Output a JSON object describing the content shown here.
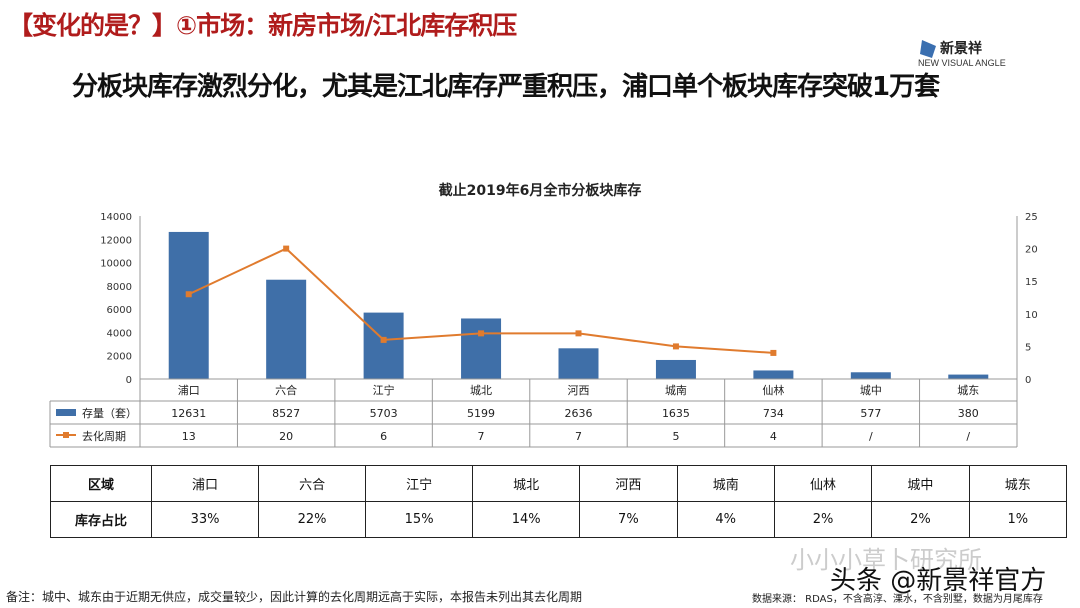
{
  "header": {
    "title": "【变化的是？】①市场：新房市场/江北库存积压",
    "subtitle": "分板块库存激烈分化，尤其是江北库存严重积压，浦口单个板块库存突破1万套",
    "logo_text": "新景祥",
    "logo_sub": "NEW VISUAL ANGLE"
  },
  "chart_data": {
    "type": "bar+line",
    "title": "截止2019年6月全市分板块库存",
    "categories": [
      "浦口",
      "六合",
      "江宁",
      "城北",
      "河西",
      "城南",
      "仙林",
      "城中",
      "城东"
    ],
    "series": [
      {
        "name": "存量（套）",
        "type": "bar",
        "axis": "left",
        "color": "#3f6fa8",
        "values": [
          12631,
          8527,
          5703,
          5199,
          2636,
          1635,
          734,
          577,
          380
        ],
        "labels": [
          "12631",
          "8527",
          "5703",
          "5199",
          "2636",
          "1635",
          "734",
          "577",
          "380"
        ]
      },
      {
        "name": "去化周期",
        "type": "line",
        "axis": "right",
        "color": "#e07b2e",
        "values": [
          13,
          20,
          6,
          7,
          7,
          5,
          4,
          null,
          null
        ],
        "labels": [
          "13",
          "20",
          "6",
          "7",
          "7",
          "5",
          "4",
          "/",
          "/"
        ]
      }
    ],
    "ylim_left": [
      0,
      14000
    ],
    "yticks_left": [
      0,
      2000,
      4000,
      6000,
      8000,
      10000,
      12000,
      14000
    ],
    "ylim_right": [
      0,
      25
    ],
    "yticks_right": [
      0,
      5,
      10,
      15,
      20,
      25
    ],
    "legend": "data-table"
  },
  "share_table": {
    "row_header": "区域",
    "value_header": "库存占比",
    "regions": [
      "浦口",
      "六合",
      "江宁",
      "城北",
      "河西",
      "城南",
      "仙林",
      "城中",
      "城东"
    ],
    "shares": [
      "33%",
      "22%",
      "15%",
      "14%",
      "7%",
      "4%",
      "2%",
      "2%",
      "1%"
    ]
  },
  "footer": {
    "note": "备注：城中、城东由于近期无供应，成交量较少，因此计算的去化周期远高于实际，本报告未列出其去化周期",
    "source": "数据来源：   RDAS，不含高淳、溧水，不含别墅，数据为月尾库存",
    "watermark1": "小小小草卜研究所",
    "watermark2": "头条 @新景祥官方"
  }
}
